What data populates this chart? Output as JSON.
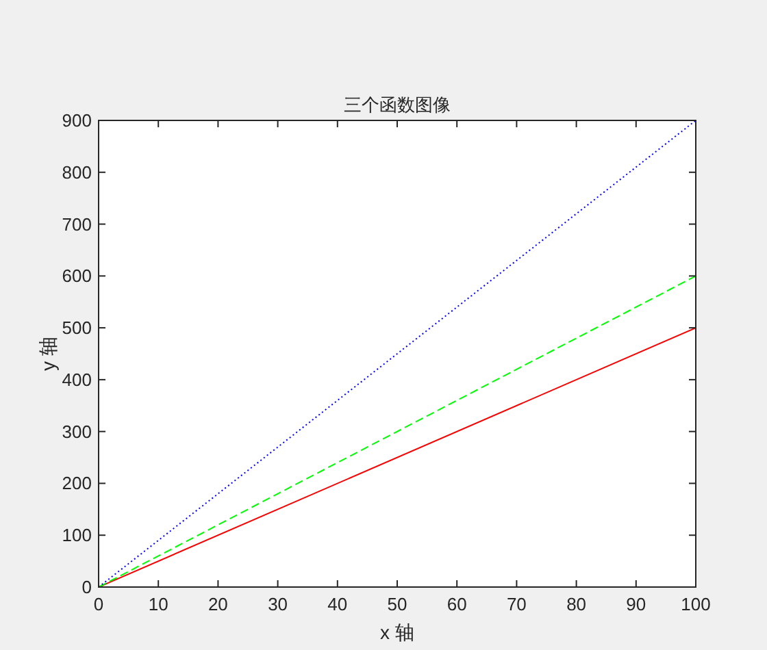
{
  "chart_data": {
    "type": "line",
    "title": "三个函数图像",
    "xlabel": "x 轴",
    "ylabel": "y 轴",
    "x": [
      0,
      100
    ],
    "series": [
      {
        "color": "#ff0000",
        "values": [
          0,
          500
        ],
        "line_style": "solid"
      },
      {
        "color": "#00ff00",
        "values": [
          0,
          600
        ],
        "line_style": "dashed"
      },
      {
        "color": "#0000ff",
        "values": [
          0,
          900
        ],
        "line_style": "dotted"
      }
    ],
    "xlim": [
      0,
      100
    ],
    "ylim": [
      0,
      900
    ],
    "xticks": [
      0,
      10,
      20,
      30,
      40,
      50,
      60,
      70,
      80,
      90,
      100
    ],
    "yticks": [
      0,
      100,
      200,
      300,
      400,
      500,
      600,
      700,
      800,
      900
    ],
    "grid": false,
    "marker": "none"
  }
}
